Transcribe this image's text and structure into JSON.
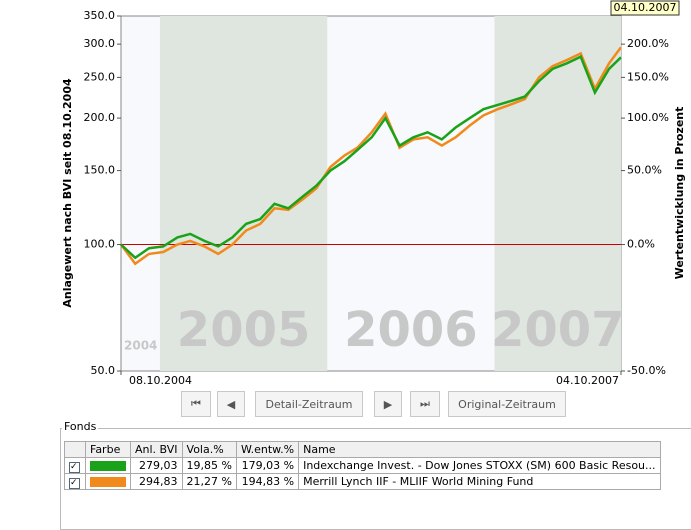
{
  "chart_data": {
    "type": "line",
    "y_label": "Anlagewert nach BVI seit 08.10.2004",
    "y2_label": "Wertentwicklung in Prozent",
    "log_scale": true,
    "x": [
      "08.10.2004",
      "08.11.2004",
      "08.12.2004",
      "08.01.2005",
      "08.02.2005",
      "08.03.2005",
      "08.04.2005",
      "08.05.2005",
      "08.06.2005",
      "08.07.2005",
      "08.08.2005",
      "08.09.2005",
      "08.10.2005",
      "08.11.2005",
      "08.12.2005",
      "08.01.2006",
      "08.02.2006",
      "08.03.2006",
      "08.04.2006",
      "08.05.2006",
      "08.06.2006",
      "08.07.2006",
      "08.08.2006",
      "08.09.2006",
      "08.10.2006",
      "08.11.2006",
      "08.12.2006",
      "08.01.2007",
      "08.02.2007",
      "08.03.2007",
      "08.04.2007",
      "08.05.2007",
      "08.06.2007",
      "08.07.2007",
      "08.08.2007",
      "08.09.2007",
      "04.10.2007"
    ],
    "series": [
      {
        "color": "#1aa31a",
        "values": [
          100,
          93,
          98,
          99,
          104,
          106,
          102,
          99,
          104,
          112,
          115,
          125,
          122,
          130,
          138,
          150,
          158,
          168,
          180,
          200,
          172,
          180,
          185,
          178,
          190,
          200,
          210,
          215,
          220,
          225,
          245,
          262,
          270,
          280,
          230,
          262,
          279.03
        ]
      },
      {
        "color": "#f08a1c",
        "values": [
          100,
          90,
          95,
          96,
          100,
          102,
          99,
          95,
          100,
          108,
          112,
          122,
          121,
          128,
          136,
          153,
          163,
          170,
          185,
          205,
          170,
          178,
          180,
          172,
          180,
          192,
          203,
          210,
          216,
          222,
          250,
          266,
          275,
          285,
          235,
          270,
          294.83
        ]
      }
    ],
    "xlim": [
      "08.10.2004",
      "04.10.2007"
    ],
    "xticks": [
      "08.10.2004",
      "04.10.2007"
    ],
    "ylim": [
      50,
      350
    ],
    "yticks": [
      {
        "value": 50,
        "label": "50.0"
      },
      {
        "value": 100,
        "label": "100.0"
      },
      {
        "value": 150,
        "label": "150.0"
      },
      {
        "value": 200,
        "label": "200.0"
      },
      {
        "value": 250,
        "label": "250.0"
      },
      {
        "value": 300,
        "label": "300.0"
      },
      {
        "value": 350,
        "label": "350.0"
      }
    ],
    "y2ticks": [
      {
        "value": -50,
        "label": "-50.0%"
      },
      {
        "value": 0,
        "label": "0.0%"
      },
      {
        "value": 50,
        "label": "50.0%"
      },
      {
        "value": 100,
        "label": "100.0%"
      },
      {
        "value": 150,
        "label": "150.0%"
      },
      {
        "value": 200,
        "label": "200.0%"
      }
    ],
    "reference_line": {
      "value": 100,
      "color": "#cc0000"
    },
    "year_bands": [
      {
        "label": "2004",
        "start": "08.10.2004",
        "end": "01.01.2005"
      },
      {
        "label": "2005",
        "start": "01.01.2005",
        "end": "01.01.2006"
      },
      {
        "label": "2006",
        "start": "01.01.2006",
        "end": "01.01.2007"
      },
      {
        "label": "2007",
        "start": "01.01.2007",
        "end": "04.10.2007"
      }
    ],
    "tooltip": "04.10.2007"
  },
  "controls": {
    "detail": "Detail-Zeitraum",
    "original": "Original-Zeitraum"
  },
  "fonds": {
    "title": "Fonds",
    "headers": [
      "Farbe",
      "Anl. BVI",
      "Vola.%",
      "W.entw.%",
      "Name"
    ],
    "rows": [
      [
        "279,03",
        "19,85 %",
        "179,03 %",
        "Indexchange Invest. - Dow Jones STOXX (SM) 600 Basic Resou..."
      ],
      [
        "294,83",
        "21,27 %",
        "194,83 %",
        "Merrill Lynch IIF - MLIIF World Mining Fund"
      ]
    ]
  }
}
